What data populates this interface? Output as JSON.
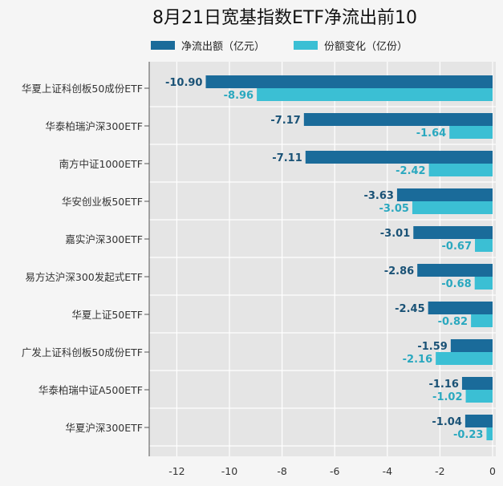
{
  "chart_data": {
    "type": "bar",
    "orientation": "horizontal",
    "title": "8月21日宽基指数ETF净流出前10",
    "categories": [
      "华夏上证科创板50成份ETF",
      "华泰柏瑞沪深300ETF",
      "南方中证1000ETF",
      "华安创业板50ETF",
      "嘉实沪深300ETF",
      "易方达沪深300发起式ETF",
      "华夏上证50ETF",
      "广发上证科创板50成份ETF",
      "华泰柏瑞中证A500ETF",
      "华夏沪深300ETF"
    ],
    "series": [
      {
        "name": "净流出额（亿元）",
        "color": "#1a6b9a",
        "label_color": "#1a5276",
        "values": [
          -10.9,
          -7.17,
          -7.11,
          -3.63,
          -3.01,
          -2.86,
          -2.45,
          -1.59,
          -1.16,
          -1.04
        ],
        "labels": [
          "-10.90",
          "-7.17",
          "-7.11",
          "-3.63",
          "-3.01",
          "-2.86",
          "-2.45",
          "-1.59",
          "-1.16",
          "-1.04"
        ]
      },
      {
        "name": "份额变化（亿份）",
        "color": "#3bbfd4",
        "label_color": "#2aa8bf",
        "values": [
          -8.96,
          -1.64,
          -2.42,
          -3.05,
          -0.67,
          -0.68,
          -0.82,
          -2.16,
          -1.02,
          -0.23
        ],
        "labels": [
          "-8.96",
          "-1.64",
          "-2.42",
          "-3.05",
          "-0.67",
          "-0.68",
          "-0.82",
          "-2.16",
          "-1.02",
          "-0.23"
        ]
      }
    ],
    "xlim": [
      -13,
      0
    ],
    "xticks": [
      -12,
      -10,
      -8,
      -6,
      -4,
      -2,
      0
    ],
    "xtick_labels": [
      "-12",
      "-10",
      "-8",
      "-6",
      "-4",
      "-2",
      "0"
    ],
    "grid": true,
    "legend_position": "top"
  }
}
